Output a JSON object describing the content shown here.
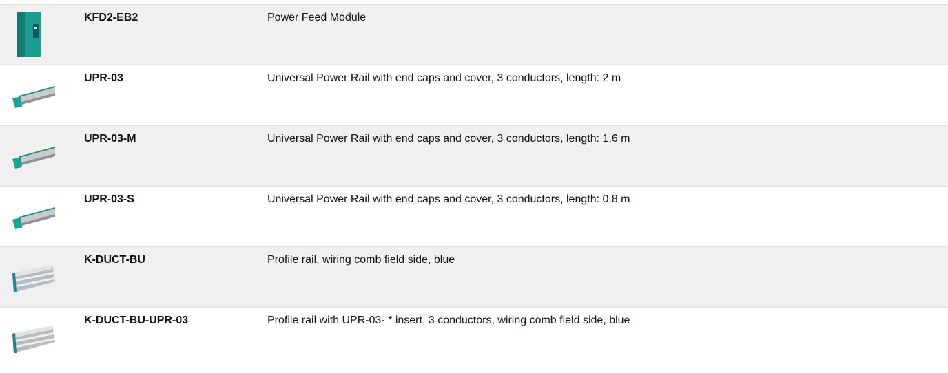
{
  "rows": [
    {
      "model": "KFD2-EB2",
      "description": "Power Feed Module"
    },
    {
      "model": "UPR-03",
      "description": "Universal Power Rail with end caps and cover, 3 conductors, length: 2 m"
    },
    {
      "model": "UPR-03-M",
      "description": "Universal Power Rail with end caps and cover, 3 conductors, length: 1,6 m"
    },
    {
      "model": "UPR-03-S",
      "description": "Universal Power Rail with end caps and cover, 3 conductors, length: 0.8 m"
    },
    {
      "model": "K-DUCT-BU",
      "description": "Profile rail, wiring comb field side, blue"
    },
    {
      "model": "K-DUCT-BU-UPR-03",
      "description": "Profile rail with UPR-03- * insert, 3 conductors, wiring comb field side, blue"
    }
  ]
}
